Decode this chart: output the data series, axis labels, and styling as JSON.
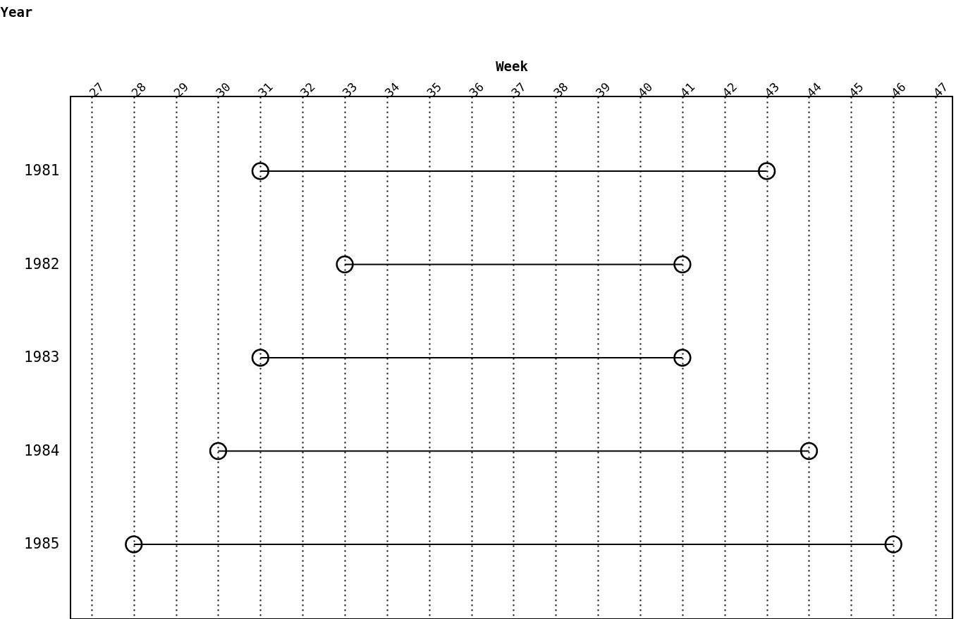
{
  "chart_data": {
    "type": "bar",
    "orientation": "horizontal",
    "xlabel": "Week",
    "ylabel": "Year",
    "categories": [
      "1981",
      "1982",
      "1983",
      "1984",
      "1985"
    ],
    "series": [
      {
        "type": "bar",
        "color": "#000000",
        "base": [
          31,
          33,
          31,
          30,
          28
        ],
        "values": [
          12,
          8,
          10,
          14,
          18
        ]
      },
      {
        "type": "scatter",
        "color": "#000000",
        "marker": "circle",
        "values": [
          31,
          33,
          31,
          30,
          28
        ]
      },
      {
        "type": "scatter",
        "color": "#000000",
        "marker": "circle",
        "values": [
          43,
          41,
          41,
          44,
          46
        ]
      }
    ],
    "xlim": [
      26.5,
      47.4
    ],
    "xticks": [
      27,
      28,
      29,
      30,
      31,
      32,
      33,
      34,
      35,
      36,
      37,
      38,
      39,
      40,
      41,
      42,
      43,
      44,
      45,
      46,
      47
    ],
    "grid": "x"
  }
}
